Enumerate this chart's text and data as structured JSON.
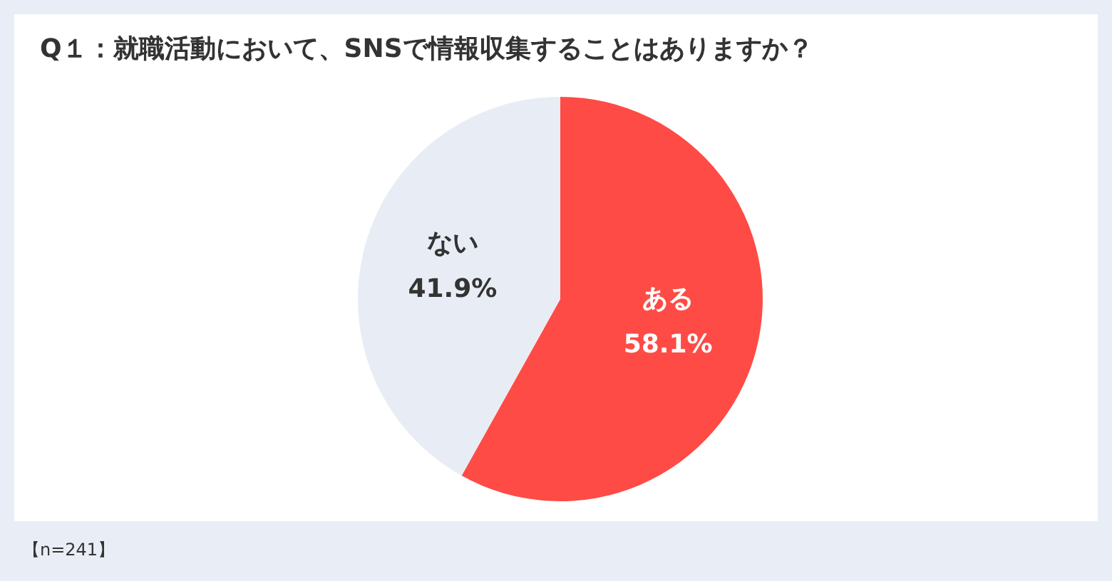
{
  "chart_data": {
    "type": "pie",
    "title": "Q１：就職活動において、SNSで情報収集することはありますか？",
    "categories": [
      "ある",
      "ない"
    ],
    "values": [
      58.1,
      41.9
    ],
    "colors": [
      "#ff4b45",
      "#e8edf5"
    ],
    "value_labels": [
      "58.1%",
      "41.9%"
    ],
    "annotations": [
      "【n=241】"
    ]
  }
}
